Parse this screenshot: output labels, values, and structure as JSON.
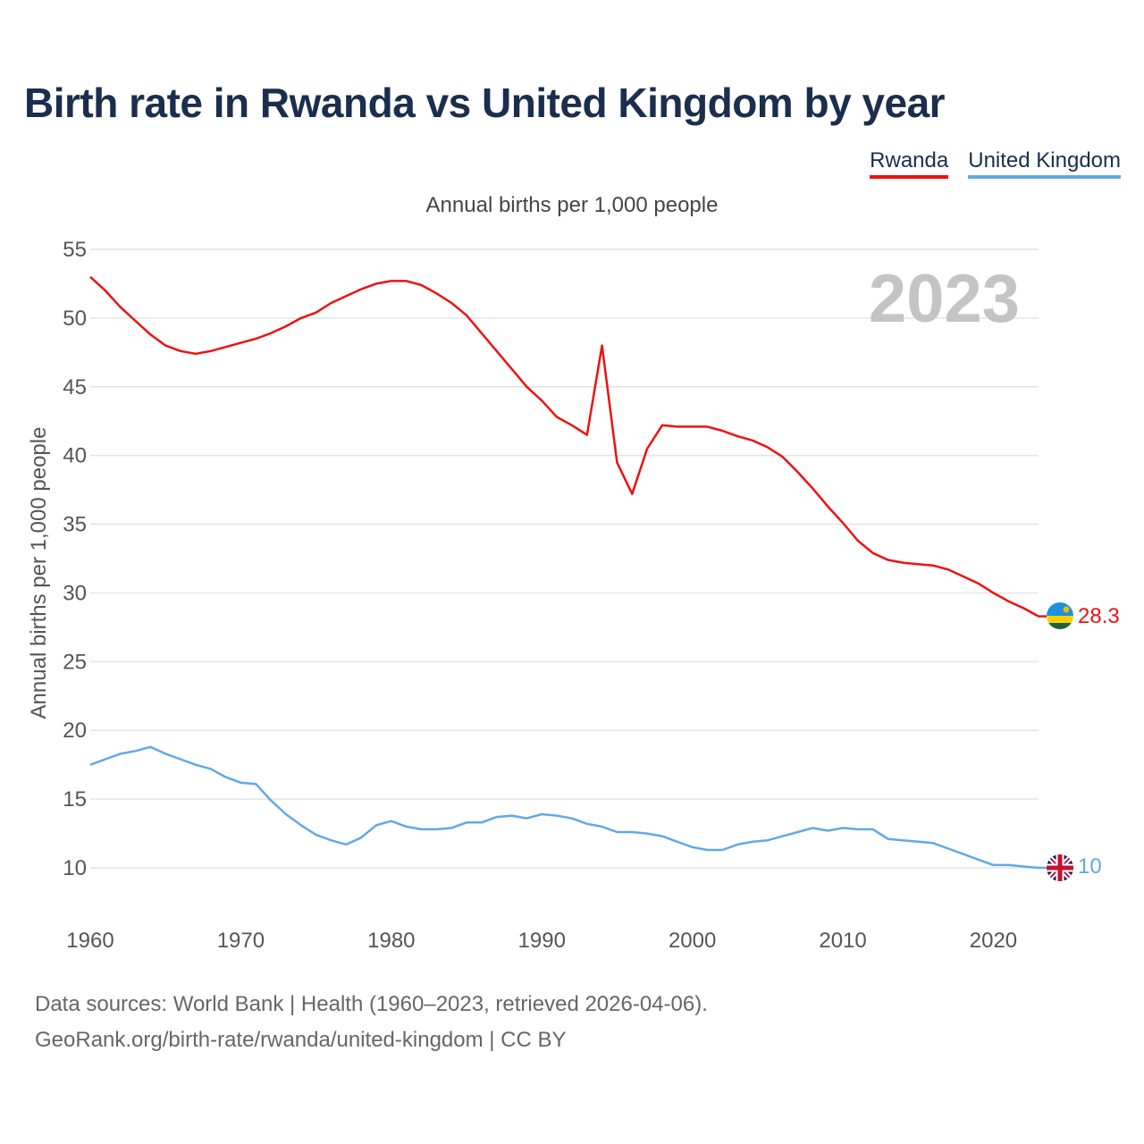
{
  "title": "Birth rate in Rwanda vs United Kingdom by year",
  "legend": {
    "rwanda": "Rwanda",
    "uk": "United Kingdom"
  },
  "footer": {
    "line1": "Data sources: World Bank | Health (1960–2023, retrieved 2026-04-06).",
    "line2": "GeoRank.org/birth-rate/rwanda/united-kingdom | CC BY"
  },
  "chart_data": {
    "type": "line",
    "title": "Annual births per 1,000 people",
    "ylabel": "Annual births per 1,000 people",
    "xlabel": "",
    "year_label": "2023",
    "xlim": [
      1960,
      2023
    ],
    "ylim": [
      8,
      55
    ],
    "yticks": [
      10,
      15,
      20,
      25,
      30,
      35,
      40,
      45,
      50,
      55
    ],
    "xticks": [
      1960,
      1970,
      1980,
      1990,
      2000,
      2010,
      2020
    ],
    "grid": true,
    "legend_position": "top-right",
    "series": [
      {
        "name": "Rwanda",
        "color": "#ee1111",
        "end_label": "28.3",
        "flag": "rwanda-flag",
        "x": [
          1960,
          1961,
          1962,
          1963,
          1964,
          1965,
          1966,
          1967,
          1968,
          1969,
          1970,
          1971,
          1972,
          1973,
          1974,
          1975,
          1976,
          1977,
          1978,
          1979,
          1980,
          1981,
          1982,
          1983,
          1984,
          1985,
          1986,
          1987,
          1988,
          1989,
          1990,
          1991,
          1992,
          1993,
          1994,
          1995,
          1996,
          1997,
          1998,
          1999,
          2000,
          2001,
          2002,
          2003,
          2004,
          2005,
          2006,
          2007,
          2008,
          2009,
          2010,
          2011,
          2012,
          2013,
          2014,
          2015,
          2016,
          2017,
          2018,
          2019,
          2020,
          2021,
          2022,
          2023
        ],
        "values": [
          53.0,
          52.0,
          50.8,
          49.8,
          48.8,
          48.0,
          47.6,
          47.4,
          47.6,
          47.9,
          48.2,
          48.5,
          48.9,
          49.4,
          50.0,
          50.4,
          51.1,
          51.6,
          52.1,
          52.5,
          52.7,
          52.7,
          52.4,
          51.8,
          51.1,
          50.2,
          48.9,
          47.6,
          46.3,
          45.0,
          44.0,
          42.8,
          42.2,
          41.5,
          48.0,
          39.5,
          37.2,
          40.5,
          42.2,
          42.1,
          42.1,
          42.1,
          41.8,
          41.4,
          41.1,
          40.6,
          39.9,
          38.8,
          37.6,
          36.3,
          35.1,
          33.8,
          32.9,
          32.4,
          32.2,
          32.1,
          32.0,
          31.7,
          31.2,
          30.7,
          30.0,
          29.4,
          28.9,
          28.3
        ]
      },
      {
        "name": "United Kingdom",
        "color": "#62a8e5",
        "end_label": "10",
        "flag": "uk-flag",
        "x": [
          1960,
          1961,
          1962,
          1963,
          1964,
          1965,
          1966,
          1967,
          1968,
          1969,
          1970,
          1971,
          1972,
          1973,
          1974,
          1975,
          1976,
          1977,
          1978,
          1979,
          1980,
          1981,
          1982,
          1983,
          1984,
          1985,
          1986,
          1987,
          1988,
          1989,
          1990,
          1991,
          1992,
          1993,
          1994,
          1995,
          1996,
          1997,
          1998,
          1999,
          2000,
          2001,
          2002,
          2003,
          2004,
          2005,
          2006,
          2007,
          2008,
          2009,
          2010,
          2011,
          2012,
          2013,
          2014,
          2015,
          2016,
          2017,
          2018,
          2019,
          2020,
          2021,
          2022,
          2023
        ],
        "values": [
          17.5,
          17.9,
          18.3,
          18.5,
          18.8,
          18.3,
          17.9,
          17.5,
          17.2,
          16.6,
          16.2,
          16.1,
          14.9,
          13.9,
          13.1,
          12.4,
          12.0,
          11.7,
          12.2,
          13.1,
          13.4,
          13.0,
          12.8,
          12.8,
          12.9,
          13.3,
          13.3,
          13.7,
          13.8,
          13.6,
          13.9,
          13.8,
          13.6,
          13.2,
          13.0,
          12.6,
          12.6,
          12.5,
          12.3,
          11.9,
          11.5,
          11.3,
          11.3,
          11.7,
          11.9,
          12.0,
          12.3,
          12.6,
          12.9,
          12.7,
          12.9,
          12.8,
          12.8,
          12.1,
          12.0,
          11.9,
          11.8,
          11.4,
          11.0,
          10.6,
          10.2,
          10.2,
          10.1,
          10.0
        ]
      }
    ]
  }
}
